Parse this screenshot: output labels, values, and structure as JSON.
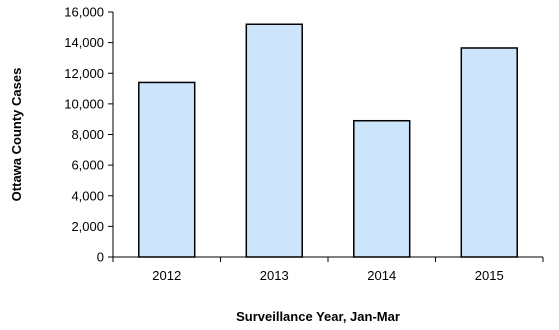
{
  "chart_data": {
    "type": "bar",
    "title": "",
    "xlabel": "Surveillance Year, Jan-Mar",
    "ylabel": "Ottawa County Cases",
    "categories": [
      "2012",
      "2013",
      "2014",
      "2015"
    ],
    "values": [
      11400,
      15200,
      8900,
      13650
    ],
    "ylim": [
      0,
      16000
    ],
    "yticks": [
      0,
      2000,
      4000,
      6000,
      8000,
      10000,
      12000,
      14000,
      16000
    ],
    "ytick_labels": [
      "0",
      "2,000",
      "4,000",
      "6,000",
      "8,000",
      "10,000",
      "12,000",
      "14,000",
      "16,000"
    ],
    "grid": false,
    "legend": "none",
    "bar_fill": "#cce5fa",
    "bar_stroke": "#000000"
  }
}
